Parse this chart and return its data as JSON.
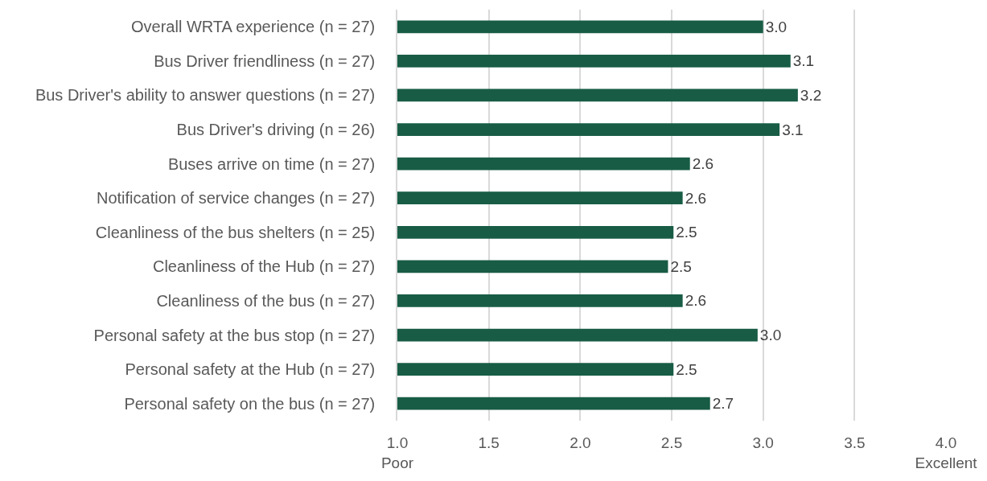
{
  "chart_data": {
    "type": "bar",
    "orientation": "horizontal",
    "categories": [
      "Overall WRTA experience (n = 27)",
      "Bus Driver friendliness (n = 27)",
      "Bus Driver's ability to answer questions (n = 27)",
      "Bus Driver's driving (n = 26)",
      "Buses arrive on time (n = 27)",
      "Notification of service changes (n = 27)",
      "Cleanliness of the bus shelters (n = 25)",
      "Cleanliness of the Hub (n = 27)",
      "Cleanliness of the bus (n = 27)",
      "Personal safety at the bus stop (n = 27)",
      "Personal safety at the Hub (n = 27)",
      "Personal safety on the bus (n = 27)"
    ],
    "values": [
      3.0,
      3.15,
      3.19,
      3.09,
      2.6,
      2.56,
      2.51,
      2.48,
      2.56,
      2.97,
      2.51,
      2.71
    ],
    "value_labels": [
      "3.0",
      "3.1",
      "3.2",
      "3.1",
      "2.6",
      "2.6",
      "2.5",
      "2.5",
      "2.6",
      "3.0",
      "2.5",
      "2.7"
    ],
    "color": "#185c45",
    "xlim": [
      1.0,
      4.0
    ],
    "xticks": [
      {
        "value": 1.0,
        "label": "1.0\nPoor"
      },
      {
        "value": 1.5,
        "label": "1.5"
      },
      {
        "value": 2.0,
        "label": "2.0"
      },
      {
        "value": 2.5,
        "label": "2.5"
      },
      {
        "value": 3.0,
        "label": "3.0"
      },
      {
        "value": 3.5,
        "label": "3.5"
      },
      {
        "value": 4.0,
        "label": "4.0\nExcellent"
      }
    ],
    "grid": "x"
  }
}
